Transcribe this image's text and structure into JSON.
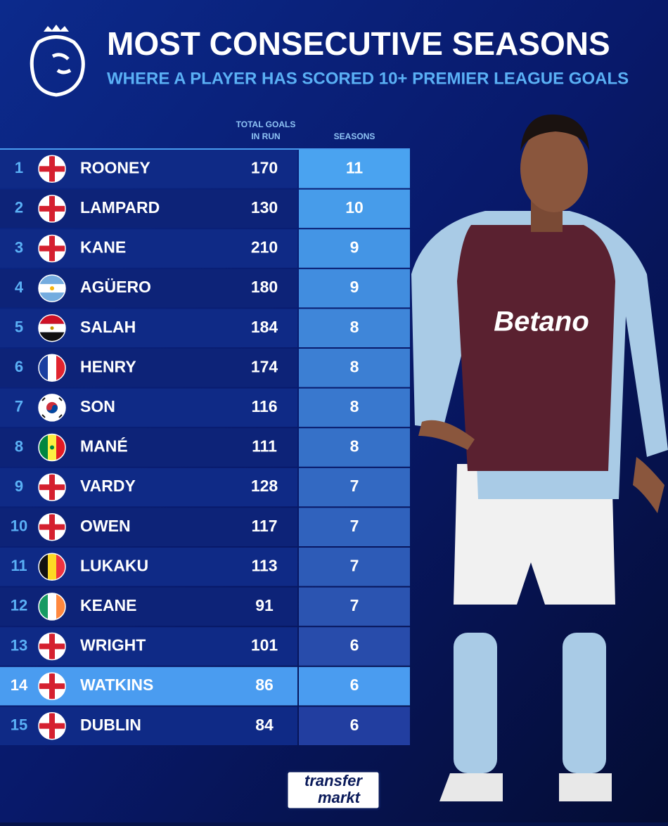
{
  "header": {
    "title": "MOST CONSECUTIVE SEASONS",
    "subtitle": "WHERE A PLAYER HAS SCORED 10+ PREMIER LEAGUE GOALS"
  },
  "table": {
    "columns": [
      "TOTAL GOALS",
      "IN RUN",
      "SEASONS"
    ],
    "rows": [
      [
        1,
        "ROONEY",
        170,
        11
      ],
      [
        2,
        "LAMPARD",
        130,
        10
      ],
      [
        3,
        "KANE",
        210,
        9
      ],
      [
        4,
        "AGÜERO",
        180,
        9
      ],
      [
        5,
        "SALAH",
        184,
        8
      ],
      [
        6,
        "HENRY",
        174,
        8
      ],
      [
        7,
        "SON",
        116,
        8
      ],
      [
        8,
        "MANÉ",
        111,
        8
      ],
      [
        9,
        "VARDY",
        128,
        7
      ],
      [
        10,
        "OWEN",
        117,
        7
      ],
      [
        11,
        "LUKAKU",
        113,
        7
      ],
      [
        12,
        "KEANE",
        91,
        7
      ],
      [
        13,
        "WRIGHT",
        101,
        6
      ],
      [
        14,
        "WATKINS",
        86,
        6
      ],
      [
        15,
        "DUBLIN",
        84,
        6
      ]
    ]
  },
  "photo": {
    "sponsor": "Betano"
  },
  "footer": {
    "logo": [
      "transfer",
      "markt"
    ]
  }
}
